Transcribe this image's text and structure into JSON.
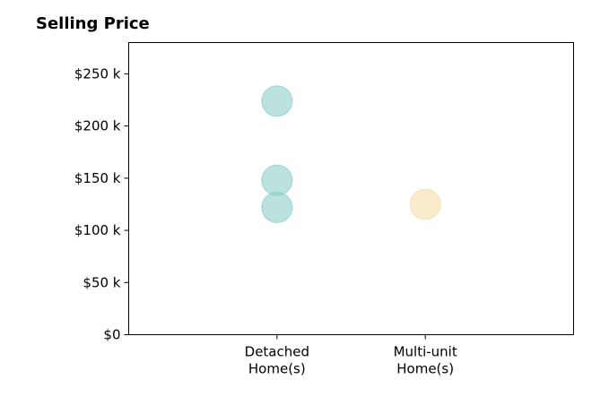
{
  "chart_data": {
    "type": "scatter",
    "title": "Selling Price",
    "xlabel": "",
    "ylabel": "",
    "categories": [
      [
        "Detached",
        "Home(s)"
      ],
      [
        "Multi-unit",
        "Home(s)"
      ]
    ],
    "xlim": [
      -1,
      2
    ],
    "ylim": [
      0,
      280000
    ],
    "yticks": [
      {
        "value": 0,
        "label": "$0"
      },
      {
        "value": 50000,
        "label": "$50 k"
      },
      {
        "value": 100000,
        "label": "$100 k"
      },
      {
        "value": 150000,
        "label": "$150 k"
      },
      {
        "value": 200000,
        "label": "$200 k"
      },
      {
        "value": 250000,
        "label": "$250 k"
      }
    ],
    "grid": false,
    "points": [
      {
        "category": 0,
        "value": 224000,
        "color": "#8ecfc8"
      },
      {
        "category": 0,
        "value": 148000,
        "color": "#8ecfc8"
      },
      {
        "category": 0,
        "value": 122000,
        "color": "#8ecfc8"
      },
      {
        "category": 1,
        "value": 125000,
        "color": "#f6deaa"
      }
    ]
  }
}
